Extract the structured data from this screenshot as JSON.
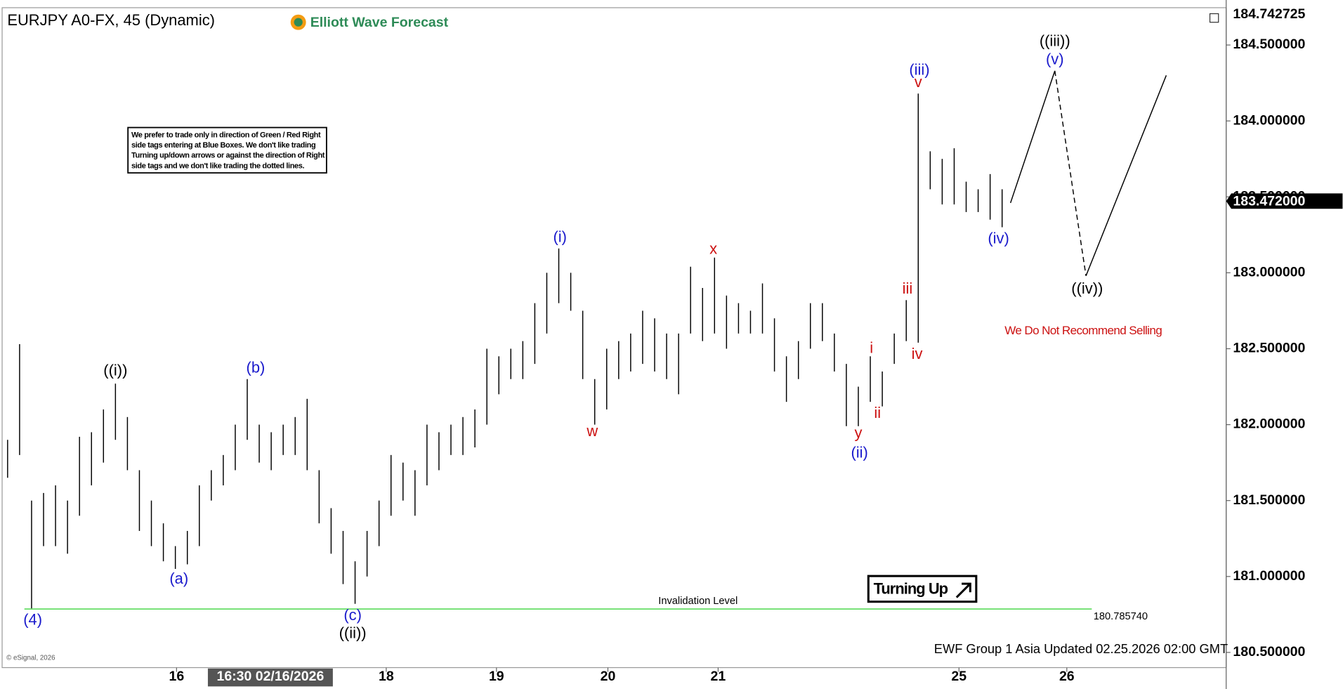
{
  "chart_data": {
    "type": "ohlc",
    "title": "EURJPY A0-FX, 45 (Dynamic)",
    "logo": "Elliott Wave Forecast",
    "disclaimer": [
      "We prefer to trade only in direction of Green / Red Right",
      "side tags entering at Blue Boxes. We don't like trading",
      "Turning up/down arrows or against the direction of Right",
      "side tags and we don't like trading the dotted lines."
    ],
    "recommendation": "We Do Not Recommend Selling",
    "signal": "Turning Up",
    "footer": "EWF Group 1 Asia Updated 02.25.2026 02:00 GMT",
    "copyright": "© eSignal, 2026",
    "color": "#000000",
    "high": [
      181.9,
      182.53,
      181.5,
      181.55,
      181.6,
      181.5,
      181.92,
      181.95,
      182.1,
      182.27,
      182.05,
      181.7,
      181.5,
      181.35,
      181.2,
      181.3,
      181.6,
      181.7,
      181.8,
      182.0,
      182.3,
      182.0,
      181.95,
      182.0,
      182.05,
      182.17,
      181.7,
      181.45,
      181.3,
      181.1,
      181.3,
      181.5,
      181.8,
      181.75,
      181.7,
      182.0,
      181.95,
      182.0,
      182.05,
      182.1,
      182.5,
      182.45,
      182.5,
      182.55,
      182.8,
      183.0,
      183.16,
      183.0,
      182.75,
      182.3,
      182.5,
      182.55,
      182.6,
      182.75,
      182.7,
      182.6,
      182.6,
      183.04,
      182.9,
      183.1,
      182.85,
      182.8,
      182.75,
      182.93,
      182.7,
      182.45,
      182.55,
      182.8,
      182.8,
      182.6,
      182.4,
      182.25,
      182.45,
      182.35,
      182.6,
      182.82,
      184.18,
      183.8,
      183.75,
      183.82,
      183.6,
      183.55,
      183.65,
      183.55
    ],
    "low": [
      181.65,
      181.8,
      180.79,
      181.2,
      181.2,
      181.15,
      181.4,
      181.6,
      181.75,
      181.9,
      181.7,
      181.3,
      181.2,
      181.1,
      181.05,
      181.08,
      181.2,
      181.5,
      181.6,
      181.7,
      181.9,
      181.75,
      181.7,
      181.8,
      181.8,
      181.7,
      181.35,
      181.15,
      180.95,
      180.82,
      181.0,
      181.2,
      181.4,
      181.5,
      181.4,
      181.6,
      181.7,
      181.8,
      181.8,
      181.85,
      182.0,
      182.2,
      182.3,
      182.3,
      182.4,
      182.6,
      182.8,
      182.75,
      182.3,
      182.0,
      182.1,
      182.3,
      182.35,
      182.4,
      182.35,
      182.3,
      182.2,
      182.6,
      182.55,
      182.6,
      182.5,
      182.6,
      182.6,
      182.6,
      182.35,
      182.15,
      182.3,
      182.5,
      182.55,
      182.35,
      181.99,
      181.99,
      182.15,
      182.12,
      182.4,
      182.55,
      182.54,
      183.55,
      183.45,
      183.45,
      183.4,
      183.4,
      183.35,
      183.3
    ],
    "xlim": [
      -0.6,
      101.7
    ],
    "xticks": [
      {
        "value": 14.1,
        "label": "16"
      },
      {
        "value": 31.6,
        "label": "18"
      },
      {
        "value": 40.8,
        "label": "19"
      },
      {
        "value": 50.1,
        "label": "20"
      },
      {
        "value": 59.3,
        "label": "21"
      },
      {
        "value": 79.4,
        "label": "25"
      },
      {
        "value": 88.4,
        "label": "26"
      }
    ],
    "date_tag": {
      "value": 17,
      "label": "16:30 02/16/2026"
    },
    "ylim": [
      180.4,
      184.74
    ],
    "yticks": [
      {
        "value": 184.5,
        "label": "184.500000"
      },
      {
        "value": 184,
        "label": "184.000000"
      },
      {
        "value": 183.5,
        "label": "183.500000"
      },
      {
        "value": 183,
        "label": "183.000000"
      },
      {
        "value": 182.5,
        "label": "182.500000"
      },
      {
        "value": 182,
        "label": "182.000000"
      },
      {
        "value": 181.5,
        "label": "181.500000"
      },
      {
        "value": 181,
        "label": "181.000000"
      },
      {
        "value": 180.5,
        "label": "180.500000"
      }
    ],
    "top_price": {
      "value": 184.742725,
      "label": "184.742725"
    },
    "last_price": {
      "value": 183.472,
      "label": "183.472000"
    },
    "invalidation": {
      "value": 180.78574,
      "label": "180.785740",
      "text": "Invalidation Level",
      "color": "#66dd66"
    },
    "projection": {
      "x": [
        83.7,
        87.4,
        90,
        96.7
      ],
      "values": [
        183.46,
        184.33,
        182.98,
        184.3
      ]
    },
    "annotations": [
      {
        "text": "((i))",
        "x": 9,
        "y": 182.35,
        "color": "#000000"
      },
      {
        "text": "(a)",
        "x": 14.3,
        "y": 180.98,
        "color": "#1a1acc"
      },
      {
        "text": "(b)",
        "x": 20.7,
        "y": 182.37,
        "color": "#1a1acc"
      },
      {
        "text": "(4)",
        "x": 2.1,
        "y": 180.71,
        "color": "#1a1acc"
      },
      {
        "text": "(c)",
        "x": 28.8,
        "y": 180.74,
        "color": "#1a1acc"
      },
      {
        "text": "((ii))",
        "x": 28.8,
        "y": 180.62,
        "color": "#000000"
      },
      {
        "text": "(i)",
        "x": 46.1,
        "y": 183.23,
        "color": "#1a1acc"
      },
      {
        "text": "w",
        "x": 48.8,
        "y": 181.95,
        "color": "#cc1111"
      },
      {
        "text": "x",
        "x": 58.9,
        "y": 183.15,
        "color": "#cc1111"
      },
      {
        "text": "y",
        "x": 71,
        "y": 181.94,
        "color": "#cc1111"
      },
      {
        "text": "(ii)",
        "x": 71.1,
        "y": 181.81,
        "color": "#1a1acc"
      },
      {
        "text": "i",
        "x": 72.1,
        "y": 182.5,
        "color": "#cc1111"
      },
      {
        "text": "ii",
        "x": 72.6,
        "y": 182.07,
        "color": "#cc1111"
      },
      {
        "text": "iii",
        "x": 75.1,
        "y": 182.89,
        "color": "#cc1111"
      },
      {
        "text": "iv",
        "x": 75.9,
        "y": 182.46,
        "color": "#cc1111"
      },
      {
        "text": "(iii)",
        "x": 76.1,
        "y": 184.33,
        "color": "#1a1acc"
      },
      {
        "text": "v",
        "x": 76,
        "y": 184.25,
        "color": "#cc1111"
      },
      {
        "text": "((iii))",
        "x": 87.4,
        "y": 184.52,
        "color": "#000000"
      },
      {
        "text": "(v)",
        "x": 87.4,
        "y": 184.4,
        "color": "#1a1acc"
      },
      {
        "text": "(iv)",
        "x": 82.7,
        "y": 183.22,
        "color": "#1a1acc"
      },
      {
        "text": "((iv))",
        "x": 90.1,
        "y": 182.89,
        "color": "#000000"
      }
    ]
  }
}
